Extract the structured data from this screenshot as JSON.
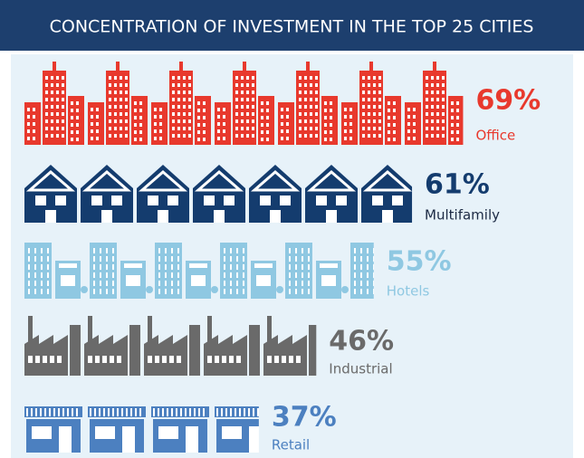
{
  "chart_data": {
    "type": "pictogram",
    "title": "CONCENTRATION OF INVESTMENT IN THE TOP 25 CITIES",
    "categories": [
      "Office",
      "Multifamily",
      "Hotels",
      "Industrial",
      "Retail"
    ],
    "values": [
      69,
      61,
      55,
      46,
      37
    ],
    "value_labels": [
      "69%",
      "61%",
      "55%",
      "46%",
      "37%"
    ],
    "colors": [
      "#e8392d",
      "#143c6e",
      "#8fc8e2",
      "#6a6a6a",
      "#4c80c0"
    ]
  }
}
